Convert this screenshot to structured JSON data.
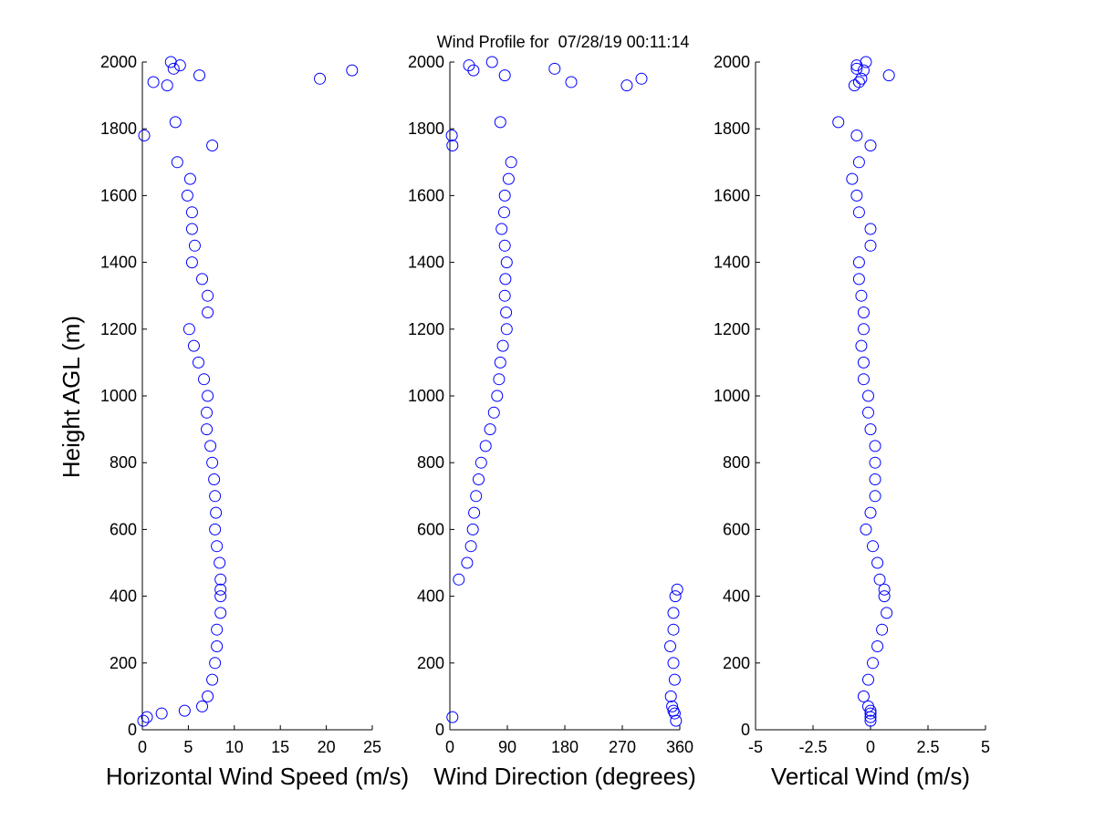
{
  "title": "Wind Profile for  07/28/19 00:11:14",
  "marker_color": "#0000ff",
  "chart_data": [
    {
      "type": "scatter",
      "xlabel": "Horizontal Wind Speed (m/s)",
      "ylabel": "Height AGL (m)",
      "xlim": [
        0,
        25
      ],
      "ylim": [
        0,
        2000
      ],
      "xticks": [
        "0",
        "5",
        "10",
        "15",
        "20",
        "25"
      ],
      "yticks": [
        "0",
        "200",
        "400",
        "600",
        "800",
        "1000",
        "1200",
        "1400",
        "1600",
        "1800",
        "2000"
      ],
      "x_key": "speed"
    },
    {
      "type": "scatter",
      "xlabel": "Wind Direction (degrees)",
      "xlim": [
        0,
        360
      ],
      "ylim": [
        0,
        2000
      ],
      "xticks": [
        "0",
        "90",
        "180",
        "270",
        "360"
      ],
      "yticks": [
        "0",
        "200",
        "400",
        "600",
        "800",
        "1000",
        "1200",
        "1400",
        "1600",
        "1800",
        "2000"
      ],
      "x_key": "direction"
    },
    {
      "type": "scatter",
      "xlabel": "Vertical Wind (m/s)",
      "xlim": [
        -5,
        5
      ],
      "ylim": [
        0,
        2000
      ],
      "xticks": [
        "-5",
        "-2.5",
        "0",
        "2.5",
        "5"
      ],
      "yticks": [
        "0",
        "200",
        "400",
        "600",
        "800",
        "1000",
        "1200",
        "1400",
        "1600",
        "1800",
        "2000"
      ],
      "x_key": "vertical"
    }
  ],
  "profile": {
    "height": [
      27,
      38,
      49,
      57,
      70,
      100,
      150,
      200,
      250,
      300,
      350,
      400,
      420,
      450,
      500,
      550,
      600,
      650,
      700,
      750,
      800,
      850,
      900,
      950,
      1000,
      1050,
      1100,
      1150,
      1200,
      1250,
      1300,
      1350,
      1400,
      1450,
      1500,
      1550,
      1600,
      1650,
      1700,
      1750,
      1780,
      1820,
      1930,
      1940,
      1950,
      1960,
      1975,
      1980,
      1990,
      2000
    ],
    "speed": [
      0.1,
      0.5,
      2.1,
      4.6,
      6.5,
      7.1,
      7.6,
      7.9,
      8.1,
      8.1,
      8.5,
      8.5,
      8.5,
      8.5,
      8.4,
      8.1,
      7.9,
      8.0,
      7.9,
      7.8,
      7.6,
      7.4,
      7.0,
      7.0,
      7.1,
      6.7,
      6.1,
      5.6,
      5.1,
      7.1,
      7.1,
      6.5,
      5.4,
      5.7,
      5.4,
      5.4,
      4.9,
      5.2,
      3.8,
      7.6,
      0.2,
      3.6,
      2.7,
      1.2,
      19.3,
      6.2,
      22.8,
      3.4,
      4.1,
      3.1
    ],
    "direction": [
      354,
      4,
      352,
      350,
      348,
      346,
      352,
      350,
      345,
      350,
      350,
      353,
      356,
      14,
      27,
      33,
      36,
      38,
      41,
      45,
      49,
      56,
      63,
      69,
      74,
      77,
      79,
      83,
      89,
      88,
      86,
      87,
      89,
      86,
      81,
      85,
      86,
      92,
      96,
      4,
      3,
      79,
      277,
      190,
      300,
      86,
      37,
      164,
      30,
      66
    ],
    "vertical": [
      0.0,
      0.0,
      0.0,
      0.0,
      -0.1,
      -0.3,
      -0.1,
      0.1,
      0.3,
      0.5,
      0.7,
      0.6,
      0.6,
      0.4,
      0.3,
      0.1,
      -0.2,
      0.0,
      0.2,
      0.2,
      0.2,
      0.2,
      0.0,
      -0.1,
      -0.1,
      -0.3,
      -0.3,
      -0.4,
      -0.3,
      -0.3,
      -0.4,
      -0.5,
      -0.5,
      0.0,
      0.0,
      -0.5,
      -0.6,
      -0.8,
      -0.5,
      0.0,
      -0.6,
      -1.4,
      -0.7,
      -0.5,
      -0.4,
      0.8,
      -0.3,
      -0.6,
      -0.6,
      -0.2
    ]
  }
}
